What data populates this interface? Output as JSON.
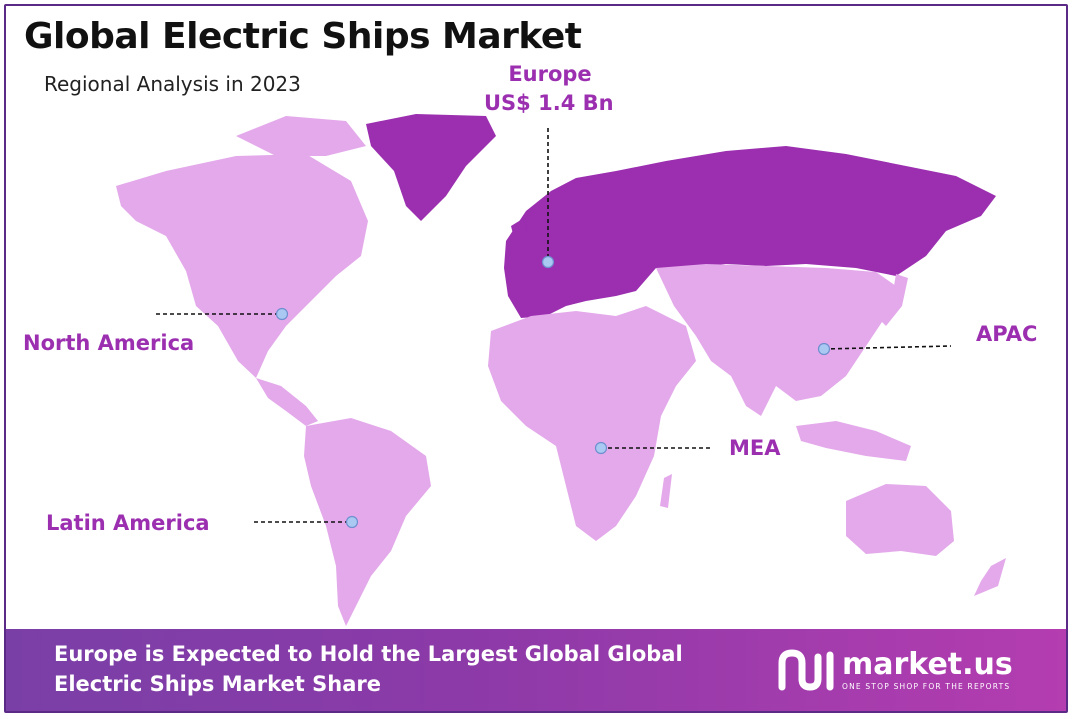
{
  "title": "Global Electric Ships Market",
  "subtitle": "Regional Analysis in 2023",
  "regions": {
    "europe": {
      "name": "Europe",
      "value": "US$ 1.4 Bn"
    },
    "north_america": {
      "name": "North America"
    },
    "apac": {
      "name": "APAC"
    },
    "mea": {
      "name": "MEA"
    },
    "latin_america": {
      "name": "Latin America"
    }
  },
  "footer": {
    "line1": "Europe is Expected to Hold the Largest Global Global",
    "line2": "Electric Ships Market Share"
  },
  "logo": {
    "name": "market.us",
    "tagline": "ONE STOP SHOP FOR THE REPORTS"
  },
  "colors": {
    "highlight_region": "#9b2fb0",
    "other_regions": "#e3a9ea",
    "label": "#9b2fb0",
    "footer_start": "#7a3fa7",
    "footer_end": "#b43db0"
  }
}
